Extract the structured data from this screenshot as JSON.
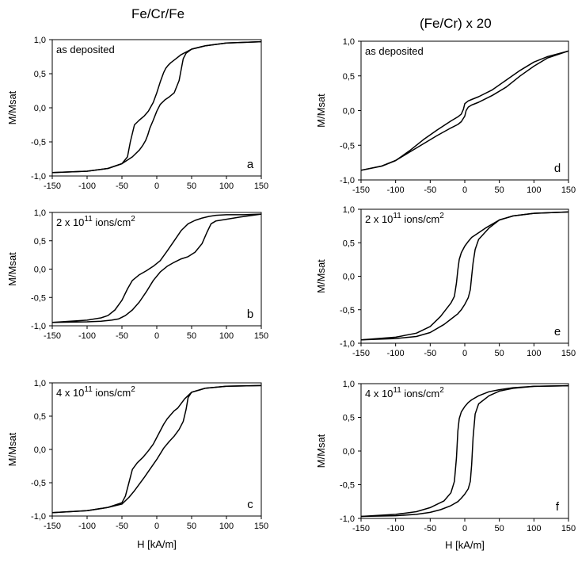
{
  "column_titles": {
    "left": "Fe/Cr/Fe",
    "right": "(Fe/Cr) x 20"
  },
  "xlabel": "H [kA/m]",
  "ylabel": "M/Msat",
  "chart_data": [
    {
      "id": "a",
      "type": "line",
      "panel_label": "a",
      "annotation": {
        "text": "as deposited"
      },
      "xlim": [
        -150,
        150
      ],
      "ylim": [
        -1.0,
        1.0
      ],
      "xticks": [
        "-150",
        "-100",
        "-50",
        "0",
        "50",
        "100",
        "150"
      ],
      "yticks": [
        "1,0",
        "0,5",
        "0,0",
        "-0,5",
        "-1,0"
      ],
      "series": [
        {
          "x": [
            -150,
            -100,
            -70,
            -50,
            -42,
            -38,
            -32,
            -25,
            -18,
            -12,
            -5,
            0,
            5,
            10,
            13,
            16,
            20,
            25,
            35,
            50,
            70,
            100,
            150
          ],
          "y": [
            -0.95,
            -0.93,
            -0.89,
            -0.82,
            -0.72,
            -0.5,
            -0.25,
            -0.18,
            -0.12,
            -0.05,
            0.08,
            0.22,
            0.38,
            0.52,
            0.58,
            0.62,
            0.66,
            0.7,
            0.78,
            0.86,
            0.91,
            0.95,
            0.97
          ]
        },
        {
          "x": [
            150,
            100,
            70,
            50,
            42,
            38,
            32,
            25,
            18,
            12,
            5,
            0,
            -5,
            -10,
            -13,
            -16,
            -20,
            -25,
            -35,
            -50,
            -70,
            -100,
            -150
          ],
          "y": [
            0.97,
            0.95,
            0.91,
            0.86,
            0.8,
            0.72,
            0.4,
            0.22,
            0.16,
            0.12,
            0.05,
            -0.05,
            -0.18,
            -0.3,
            -0.4,
            -0.48,
            -0.55,
            -0.62,
            -0.72,
            -0.82,
            -0.89,
            -0.93,
            -0.95
          ]
        }
      ]
    },
    {
      "id": "b",
      "type": "line",
      "panel_label": "b",
      "annotation": {
        "text": "2 x 10",
        "sup": "11",
        "text2": " ions/cm",
        "sup2": "2"
      },
      "xlim": [
        -150,
        150
      ],
      "ylim": [
        -1.0,
        1.0
      ],
      "xticks": [
        "-150",
        "-100",
        "-50",
        "0",
        "50",
        "100",
        "150"
      ],
      "yticks": [
        "1,0",
        "0,5",
        "0,0",
        "-0,5",
        "-1,0"
      ],
      "series": [
        {
          "x": [
            -150,
            -100,
            -80,
            -70,
            -60,
            -50,
            -42,
            -35,
            -25,
            -15,
            -5,
            5,
            15,
            25,
            35,
            45,
            55,
            65,
            75,
            85,
            100,
            125,
            150
          ],
          "y": [
            -0.94,
            -0.9,
            -0.86,
            -0.82,
            -0.72,
            -0.55,
            -0.35,
            -0.2,
            -0.1,
            -0.03,
            0.05,
            0.15,
            0.32,
            0.5,
            0.68,
            0.8,
            0.86,
            0.9,
            0.93,
            0.95,
            0.96,
            0.96,
            0.97
          ]
        },
        {
          "x": [
            150,
            120,
            100,
            85,
            78,
            72,
            65,
            55,
            45,
            35,
            25,
            15,
            5,
            -5,
            -15,
            -25,
            -35,
            -45,
            -55,
            -65,
            -80,
            -100,
            -150
          ],
          "y": [
            0.97,
            0.92,
            0.88,
            0.85,
            0.8,
            0.65,
            0.45,
            0.3,
            0.22,
            0.18,
            0.12,
            0.05,
            -0.05,
            -0.2,
            -0.4,
            -0.58,
            -0.72,
            -0.82,
            -0.88,
            -0.9,
            -0.92,
            -0.93,
            -0.94
          ]
        }
      ]
    },
    {
      "id": "c",
      "type": "line",
      "panel_label": "c",
      "annotation": {
        "text": "4 x 10",
        "sup": "11",
        "text2": " ions/cm",
        "sup2": "2"
      },
      "xlim": [
        -150,
        150
      ],
      "ylim": [
        -1.0,
        1.0
      ],
      "xticks": [
        "-150",
        "-100",
        "-50",
        "0",
        "50",
        "100",
        "150"
      ],
      "yticks": [
        "1,0",
        "0,5",
        "0,0",
        "-0,5",
        "-1,0"
      ],
      "series": [
        {
          "x": [
            -150,
            -100,
            -70,
            -50,
            -45,
            -40,
            -35,
            -28,
            -20,
            -12,
            -5,
            0,
            5,
            10,
            15,
            20,
            25,
            30,
            40,
            50,
            70,
            100,
            150
          ],
          "y": [
            -0.95,
            -0.92,
            -0.87,
            -0.8,
            -0.7,
            -0.5,
            -0.3,
            -0.2,
            -0.12,
            -0.02,
            0.08,
            0.18,
            0.28,
            0.38,
            0.46,
            0.52,
            0.58,
            0.62,
            0.76,
            0.86,
            0.92,
            0.95,
            0.96
          ]
        },
        {
          "x": [
            150,
            100,
            70,
            50,
            45,
            42,
            38,
            32,
            25,
            18,
            10,
            0,
            -10,
            -18,
            -25,
            -32,
            -40,
            -50,
            -70,
            -100,
            -150
          ],
          "y": [
            0.96,
            0.95,
            0.92,
            0.86,
            0.78,
            0.6,
            0.42,
            0.3,
            0.2,
            0.12,
            0.02,
            -0.15,
            -0.3,
            -0.42,
            -0.52,
            -0.62,
            -0.72,
            -0.82,
            -0.87,
            -0.92,
            -0.95
          ]
        }
      ]
    },
    {
      "id": "d",
      "type": "line",
      "panel_label": "d",
      "annotation": {
        "text": "as deposited"
      },
      "xlim": [
        -150,
        150
      ],
      "ylim": [
        -1.0,
        1.0
      ],
      "xticks": [
        "-150",
        "-100",
        "-50",
        "0",
        "50",
        "100",
        "150"
      ],
      "yticks": [
        "1,0",
        "0,5",
        "0,0",
        "-0,5",
        "-1,0"
      ],
      "series": [
        {
          "x": [
            -150,
            -120,
            -100,
            -80,
            -60,
            -40,
            -20,
            -10,
            -5,
            0,
            2,
            5,
            10,
            20,
            40,
            60,
            80,
            100,
            120,
            150
          ],
          "y": [
            -0.86,
            -0.8,
            -0.72,
            -0.6,
            -0.48,
            -0.36,
            -0.25,
            -0.2,
            -0.16,
            -0.08,
            0.0,
            0.05,
            0.08,
            0.12,
            0.22,
            0.34,
            0.5,
            0.64,
            0.76,
            0.86
          ]
        },
        {
          "x": [
            150,
            120,
            100,
            80,
            60,
            40,
            20,
            10,
            5,
            0,
            -2,
            -5,
            -10,
            -20,
            -40,
            -60,
            -80,
            -100,
            -120,
            -150
          ],
          "y": [
            0.86,
            0.78,
            0.7,
            0.58,
            0.44,
            0.3,
            0.2,
            0.16,
            0.14,
            0.1,
            0.02,
            -0.05,
            -0.09,
            -0.15,
            -0.28,
            -0.42,
            -0.58,
            -0.72,
            -0.8,
            -0.86
          ]
        }
      ]
    },
    {
      "id": "e",
      "type": "line",
      "panel_label": "e",
      "annotation": {
        "text": "2 x 10",
        "sup": "11",
        "text2": " ions/cm",
        "sup2": "2"
      },
      "xlim": [
        -150,
        150
      ],
      "ylim": [
        -1.0,
        1.0
      ],
      "xticks": [
        "-150",
        "-100",
        "-50",
        "0",
        "50",
        "100",
        "150"
      ],
      "yticks": [
        "1,0",
        "0,5",
        "0,0",
        "-0,5",
        "-1,0"
      ],
      "series": [
        {
          "x": [
            -150,
            -100,
            -70,
            -50,
            -35,
            -20,
            -15,
            -12,
            -10,
            -8,
            -5,
            0,
            5,
            10,
            20,
            30,
            50,
            70,
            100,
            150
          ],
          "y": [
            -0.95,
            -0.91,
            -0.85,
            -0.75,
            -0.6,
            -0.4,
            -0.3,
            -0.1,
            0.1,
            0.25,
            0.35,
            0.45,
            0.52,
            0.58,
            0.65,
            0.72,
            0.84,
            0.9,
            0.94,
            0.96
          ]
        },
        {
          "x": [
            150,
            100,
            70,
            50,
            35,
            20,
            15,
            12,
            10,
            8,
            5,
            0,
            -5,
            -10,
            -20,
            -30,
            -50,
            -70,
            -100,
            -150
          ],
          "y": [
            0.96,
            0.94,
            0.9,
            0.84,
            0.72,
            0.55,
            0.4,
            0.2,
            0.0,
            -0.2,
            -0.32,
            -0.42,
            -0.5,
            -0.56,
            -0.64,
            -0.72,
            -0.84,
            -0.9,
            -0.93,
            -0.95
          ]
        }
      ]
    },
    {
      "id": "f",
      "type": "line",
      "panel_label": "f",
      "annotation": {
        "text": "4 x 10",
        "sup": "11",
        "text2": " ions/cm",
        "sup2": "2"
      },
      "xlim": [
        -150,
        150
      ],
      "ylim": [
        -1.0,
        1.0
      ],
      "xticks": [
        "-150",
        "-100",
        "-50",
        "0",
        "50",
        "100",
        "150"
      ],
      "yticks": [
        "1,0",
        "0,5",
        "0,0",
        "-0,5",
        "-1,0"
      ],
      "series": [
        {
          "x": [
            -150,
            -100,
            -70,
            -50,
            -30,
            -20,
            -15,
            -12,
            -10,
            -8,
            -5,
            0,
            5,
            10,
            20,
            35,
            50,
            70,
            100,
            150
          ],
          "y": [
            -0.97,
            -0.94,
            -0.9,
            -0.84,
            -0.74,
            -0.62,
            -0.45,
            -0.1,
            0.3,
            0.48,
            0.58,
            0.66,
            0.72,
            0.76,
            0.82,
            0.88,
            0.91,
            0.94,
            0.96,
            0.97
          ]
        },
        {
          "x": [
            150,
            100,
            70,
            50,
            35,
            20,
            15,
            12,
            10,
            8,
            5,
            0,
            -5,
            -10,
            -20,
            -35,
            -50,
            -70,
            -100,
            -150
          ],
          "y": [
            0.97,
            0.96,
            0.93,
            0.89,
            0.82,
            0.7,
            0.55,
            0.2,
            -0.2,
            -0.45,
            -0.56,
            -0.64,
            -0.7,
            -0.75,
            -0.81,
            -0.87,
            -0.91,
            -0.94,
            -0.96,
            -0.97
          ]
        }
      ]
    }
  ]
}
